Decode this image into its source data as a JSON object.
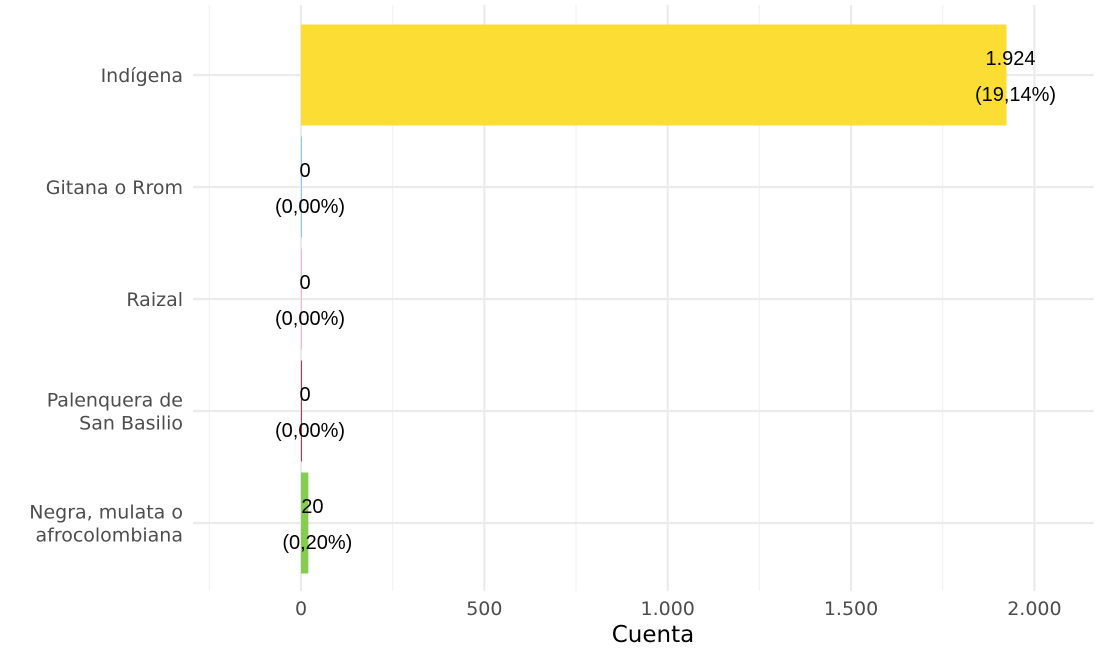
{
  "chart_data": {
    "type": "bar",
    "orientation": "horizontal",
    "xlabel": "Cuenta",
    "ylabel": "",
    "xlim": [
      -250,
      2100
    ],
    "x_ticks": [
      0,
      500,
      1000,
      1500,
      2000
    ],
    "x_tick_labels": [
      "0",
      "500",
      "1.000",
      "1.500",
      "2.000"
    ],
    "grid": true,
    "legend": "none",
    "categories": [
      {
        "label_lines": [
          "Indígena"
        ],
        "value": 1924,
        "value_label": "1.924",
        "pct_label": "(19,14%)",
        "color": "#fcdd33"
      },
      {
        "label_lines": [
          "Gitana o Rrom"
        ],
        "value": 0,
        "value_label": "0",
        "pct_label": "(0,00%)",
        "color": "#8ec9ec"
      },
      {
        "label_lines": [
          "Raizal"
        ],
        "value": 0,
        "value_label": "0",
        "pct_label": "(0,00%)",
        "color": "#f4b8c6"
      },
      {
        "label_lines": [
          "Palenquera de",
          "San Basilio"
        ],
        "value": 0,
        "value_label": "0",
        "pct_label": "(0,00%)",
        "color": "#d9263a"
      },
      {
        "label_lines": [
          "Negra, mulata o",
          "afrocolombiana"
        ],
        "value": 20,
        "value_label": "20",
        "pct_label": "(0,20%)",
        "color": "#86cc51"
      }
    ]
  }
}
